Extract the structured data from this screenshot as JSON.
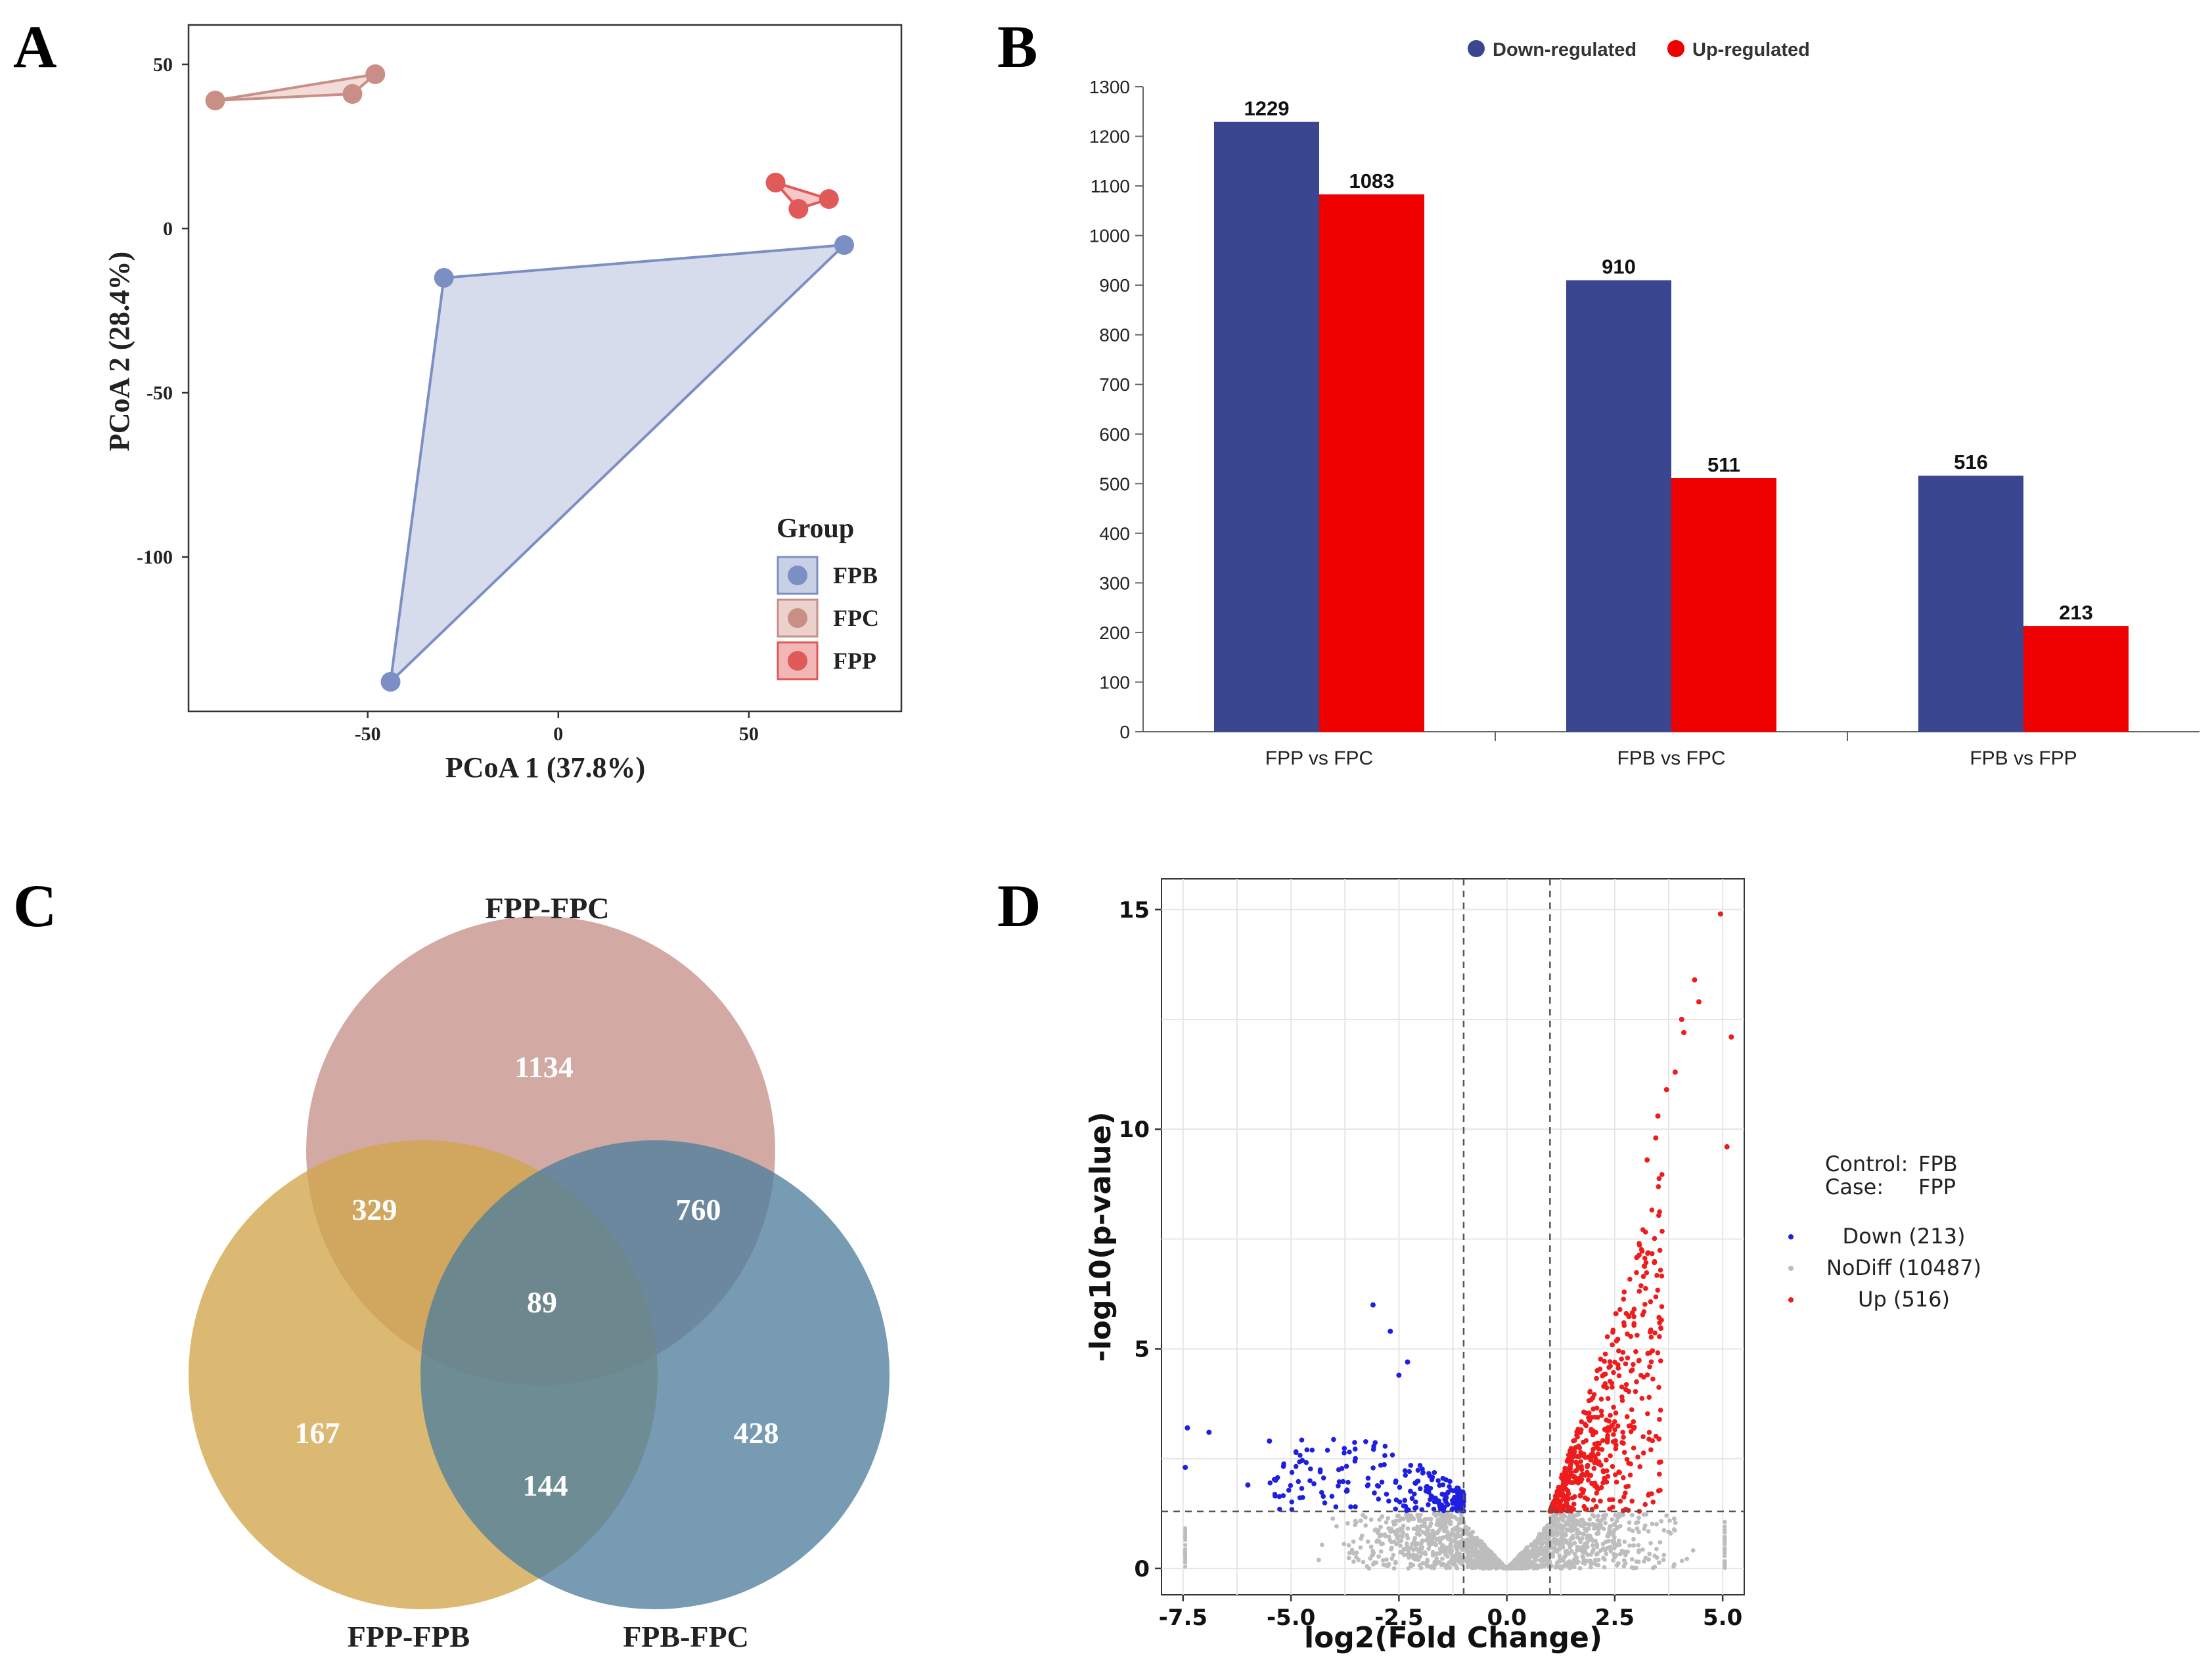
{
  "chart_data": [
    {
      "panel_label": "A",
      "type": "scatter",
      "title": "",
      "xlabel": "PCoA 1 (37.8%)",
      "ylabel": "PCoA 2 (28.4%)",
      "xlim": [
        -97,
        90
      ],
      "ylim": [
        -147,
        62
      ],
      "x_ticks": [
        -50,
        0,
        50
      ],
      "x_tick_labels": [
        "-50",
        "0",
        "50"
      ],
      "y_ticks": [
        50,
        0,
        -50,
        -100
      ],
      "y_tick_labels": [
        "50",
        "0",
        "-50",
        "-100"
      ],
      "legend_title": "Group",
      "legend_position": "bottom-right",
      "series": [
        {
          "name": "FPB",
          "color": "#7b8fc4",
          "fill": "#c8d0e6",
          "points": [
            {
              "x": -30,
              "y": -15
            },
            {
              "x": 75,
              "y": -5
            },
            {
              "x": -44,
              "y": -138
            }
          ]
        },
        {
          "name": "FPC",
          "color": "#c98f87",
          "fill": "#ecd0cb",
          "points": [
            {
              "x": -90,
              "y": 39
            },
            {
              "x": -54,
              "y": 41
            },
            {
              "x": -48,
              "y": 47
            }
          ]
        },
        {
          "name": "FPP",
          "color": "#e05a5a",
          "fill": "#f3b6b6",
          "points": [
            {
              "x": 57,
              "y": 14
            },
            {
              "x": 63,
              "y": 6
            },
            {
              "x": 71,
              "y": 9
            }
          ]
        }
      ]
    },
    {
      "panel_label": "B",
      "type": "bar",
      "title": "",
      "xlabel": "",
      "ylabel": "",
      "ylim": [
        0,
        1300
      ],
      "y_ticks": [
        0,
        100,
        200,
        300,
        400,
        500,
        600,
        700,
        800,
        900,
        1000,
        1100,
        1200,
        1300
      ],
      "categories": [
        "FPP vs FPC",
        "FPB vs FPC",
        "FPB vs FPP"
      ],
      "series": [
        {
          "name": "Down-regulated",
          "color": "#3a468f",
          "values": [
            1229,
            910,
            516
          ]
        },
        {
          "name": "Up-regulated",
          "color": "#ee0000",
          "values": [
            1083,
            511,
            213
          ]
        }
      ],
      "legend_position": "top"
    },
    {
      "panel_label": "C",
      "type": "venn",
      "sets": [
        {
          "name": "FPP-FPC",
          "color": "#c7918a"
        },
        {
          "name": "FPP-FPB",
          "color": "#d1a54a"
        },
        {
          "name": "FPB-FPC",
          "color": "#4f7f9c"
        }
      ],
      "regions": [
        {
          "sets": [
            "FPP-FPC"
          ],
          "value": 1134
        },
        {
          "sets": [
            "FPP-FPB"
          ],
          "value": 167
        },
        {
          "sets": [
            "FPB-FPC"
          ],
          "value": 428
        },
        {
          "sets": [
            "FPP-FPC",
            "FPP-FPB"
          ],
          "value": 329
        },
        {
          "sets": [
            "FPP-FPC",
            "FPB-FPC"
          ],
          "value": 760
        },
        {
          "sets": [
            "FPP-FPB",
            "FPB-FPC"
          ],
          "value": 144
        },
        {
          "sets": [
            "FPP-FPC",
            "FPP-FPB",
            "FPB-FPC"
          ],
          "value": 89
        }
      ]
    },
    {
      "panel_label": "D",
      "type": "scatter",
      "subtype": "volcano",
      "title": "",
      "xlabel": "log2(Fold Change)",
      "ylabel": "-log10(p-value)",
      "xlim": [
        -8,
        5.5
      ],
      "ylim": [
        -0.6,
        15.7
      ],
      "x_ticks": [
        -7.5,
        -5.0,
        -2.5,
        0.0,
        2.5,
        5.0
      ],
      "x_tick_labels": [
        "-7.5",
        "-5.0",
        "-2.5",
        "0.0",
        "2.5",
        "5.0"
      ],
      "y_ticks": [
        0,
        5,
        10,
        15
      ],
      "y_tick_labels": [
        "0",
        "5",
        "10",
        "15"
      ],
      "thresholds": {
        "log2fc": [
          -1,
          1
        ],
        "neg_log10_p": 1.3
      },
      "annotation": {
        "control_label": "Control:",
        "control_value": "FPB",
        "case_label": "Case:",
        "case_value": "FPP"
      },
      "legend_position": "right",
      "series": [
        {
          "name": "Down (213)",
          "color": "#1f1fe0",
          "count": 213
        },
        {
          "name": "NoDiff (10487)",
          "color": "#bdbdbd",
          "count": 10487
        },
        {
          "name": "Up (516)",
          "color": "#ee1c1c",
          "count": 516
        }
      ],
      "highlighted_points": [
        {
          "x": 4.95,
          "y": 14.9
        },
        {
          "x": 4.35,
          "y": 13.4
        },
        {
          "x": 4.45,
          "y": 12.9
        },
        {
          "x": 4.05,
          "y": 12.5
        },
        {
          "x": 4.1,
          "y": 12.2
        },
        {
          "x": 5.2,
          "y": 12.1
        },
        {
          "x": 3.9,
          "y": 11.3
        },
        {
          "x": 3.7,
          "y": 10.9
        },
        {
          "x": 3.5,
          "y": 10.3
        },
        {
          "x": 3.45,
          "y": 9.8
        },
        {
          "x": 5.1,
          "y": 9.6
        },
        {
          "x": 3.25,
          "y": 9.3
        },
        {
          "x": -3.1,
          "y": 6.0
        },
        {
          "x": -2.7,
          "y": 5.4
        },
        {
          "x": -2.3,
          "y": 4.7
        },
        {
          "x": -2.5,
          "y": 4.4
        },
        {
          "x": -7.4,
          "y": 3.2
        },
        {
          "x": -6.9,
          "y": 3.1
        },
        {
          "x": -7.45,
          "y": 2.3
        },
        {
          "x": -5.5,
          "y": 2.9
        },
        {
          "x": -6.0,
          "y": 1.9
        }
      ]
    }
  ]
}
